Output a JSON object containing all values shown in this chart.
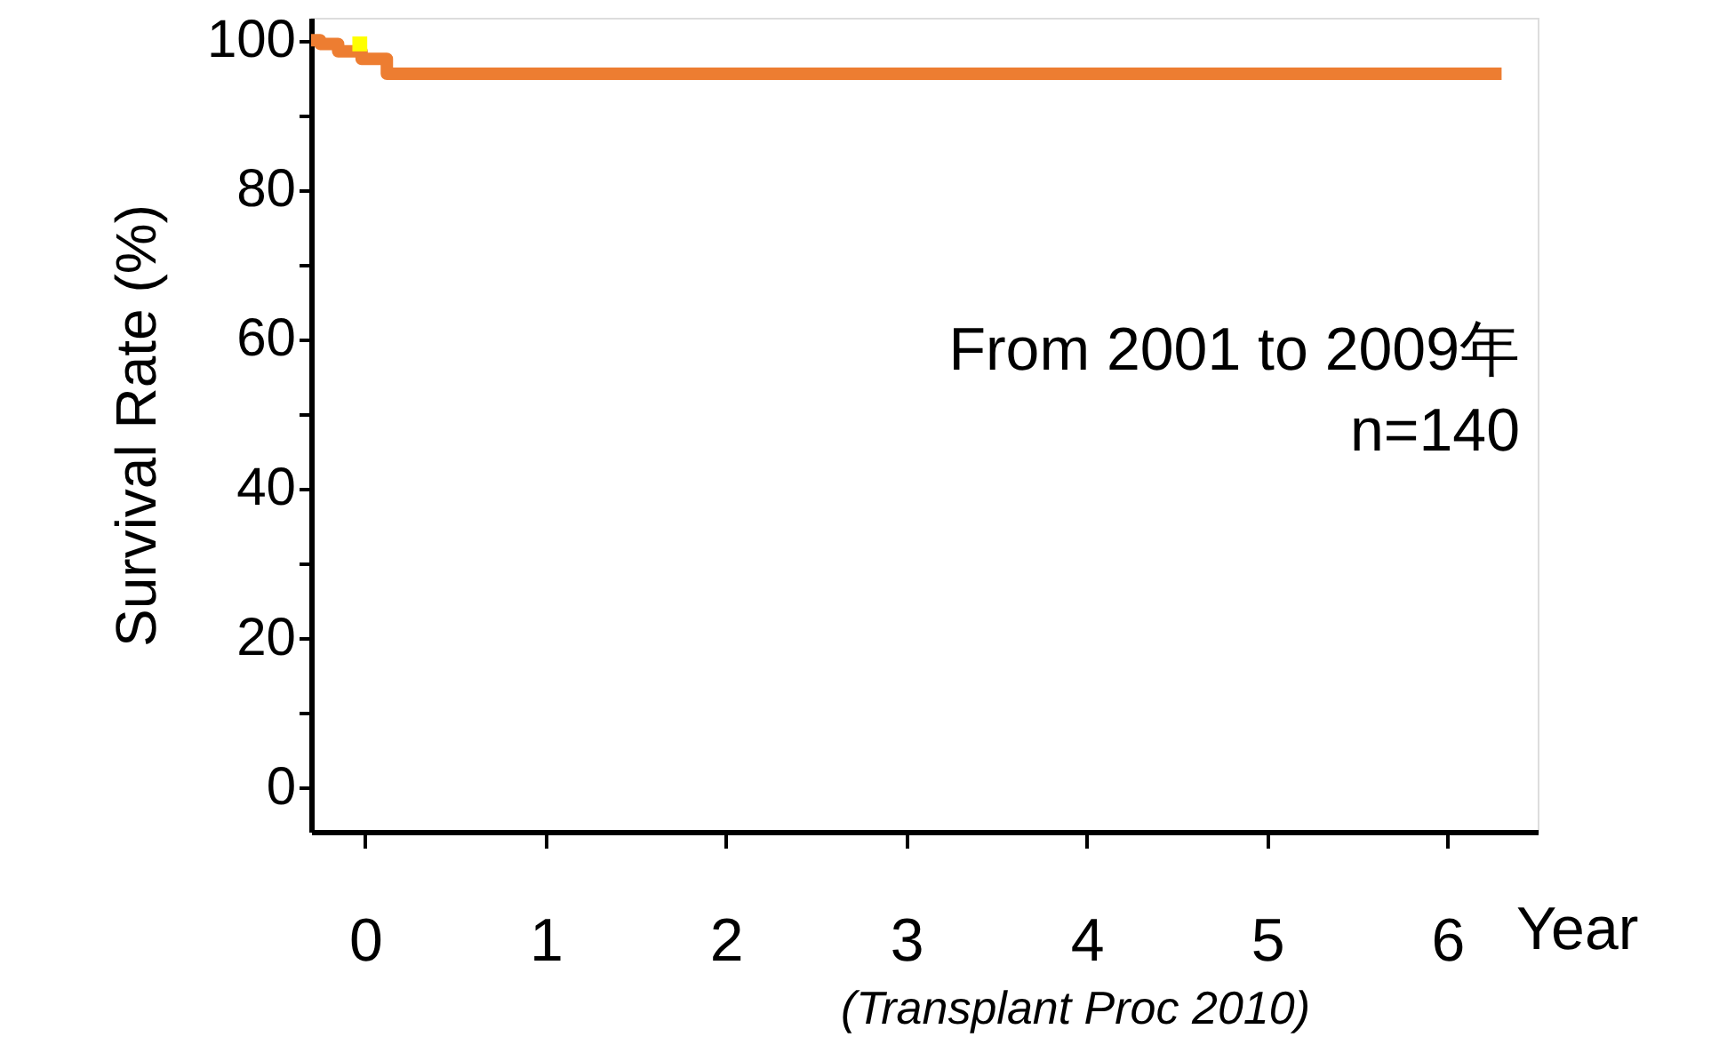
{
  "chart_data": {
    "type": "step",
    "xlabel": "Year",
    "ylabel": "Survival Rate (%)",
    "series": [
      {
        "color": "#ed7d31",
        "x": [
          -0.3,
          -0.25,
          -0.15,
          -0.02,
          0.12,
          6.3
        ],
        "values": [
          100,
          99.5,
          98.5,
          97.5,
          95.5,
          95.5
        ]
      },
      {
        "type": "scatter",
        "color": "#ffff00",
        "marker": "square",
        "x": [
          -0.03
        ],
        "values": [
          99.5
        ]
      }
    ],
    "xlim": [
      -0.3,
      6.5
    ],
    "xticks": [
      0,
      1,
      2,
      3,
      4,
      5,
      6
    ],
    "ylim": [
      -6,
      103
    ],
    "yticks": [
      0,
      {
        "value": 10,
        "label": null
      },
      20,
      {
        "value": 30,
        "label": null
      },
      40,
      {
        "value": 50,
        "label": null
      },
      60,
      {
        "value": 70,
        "label": null
      },
      80,
      {
        "value": 90,
        "label": null
      },
      100
    ],
    "grid": false,
    "annotations": [
      "From 2001  to 2009年",
      "n=140",
      "(Transplant Proc 2010)"
    ]
  }
}
